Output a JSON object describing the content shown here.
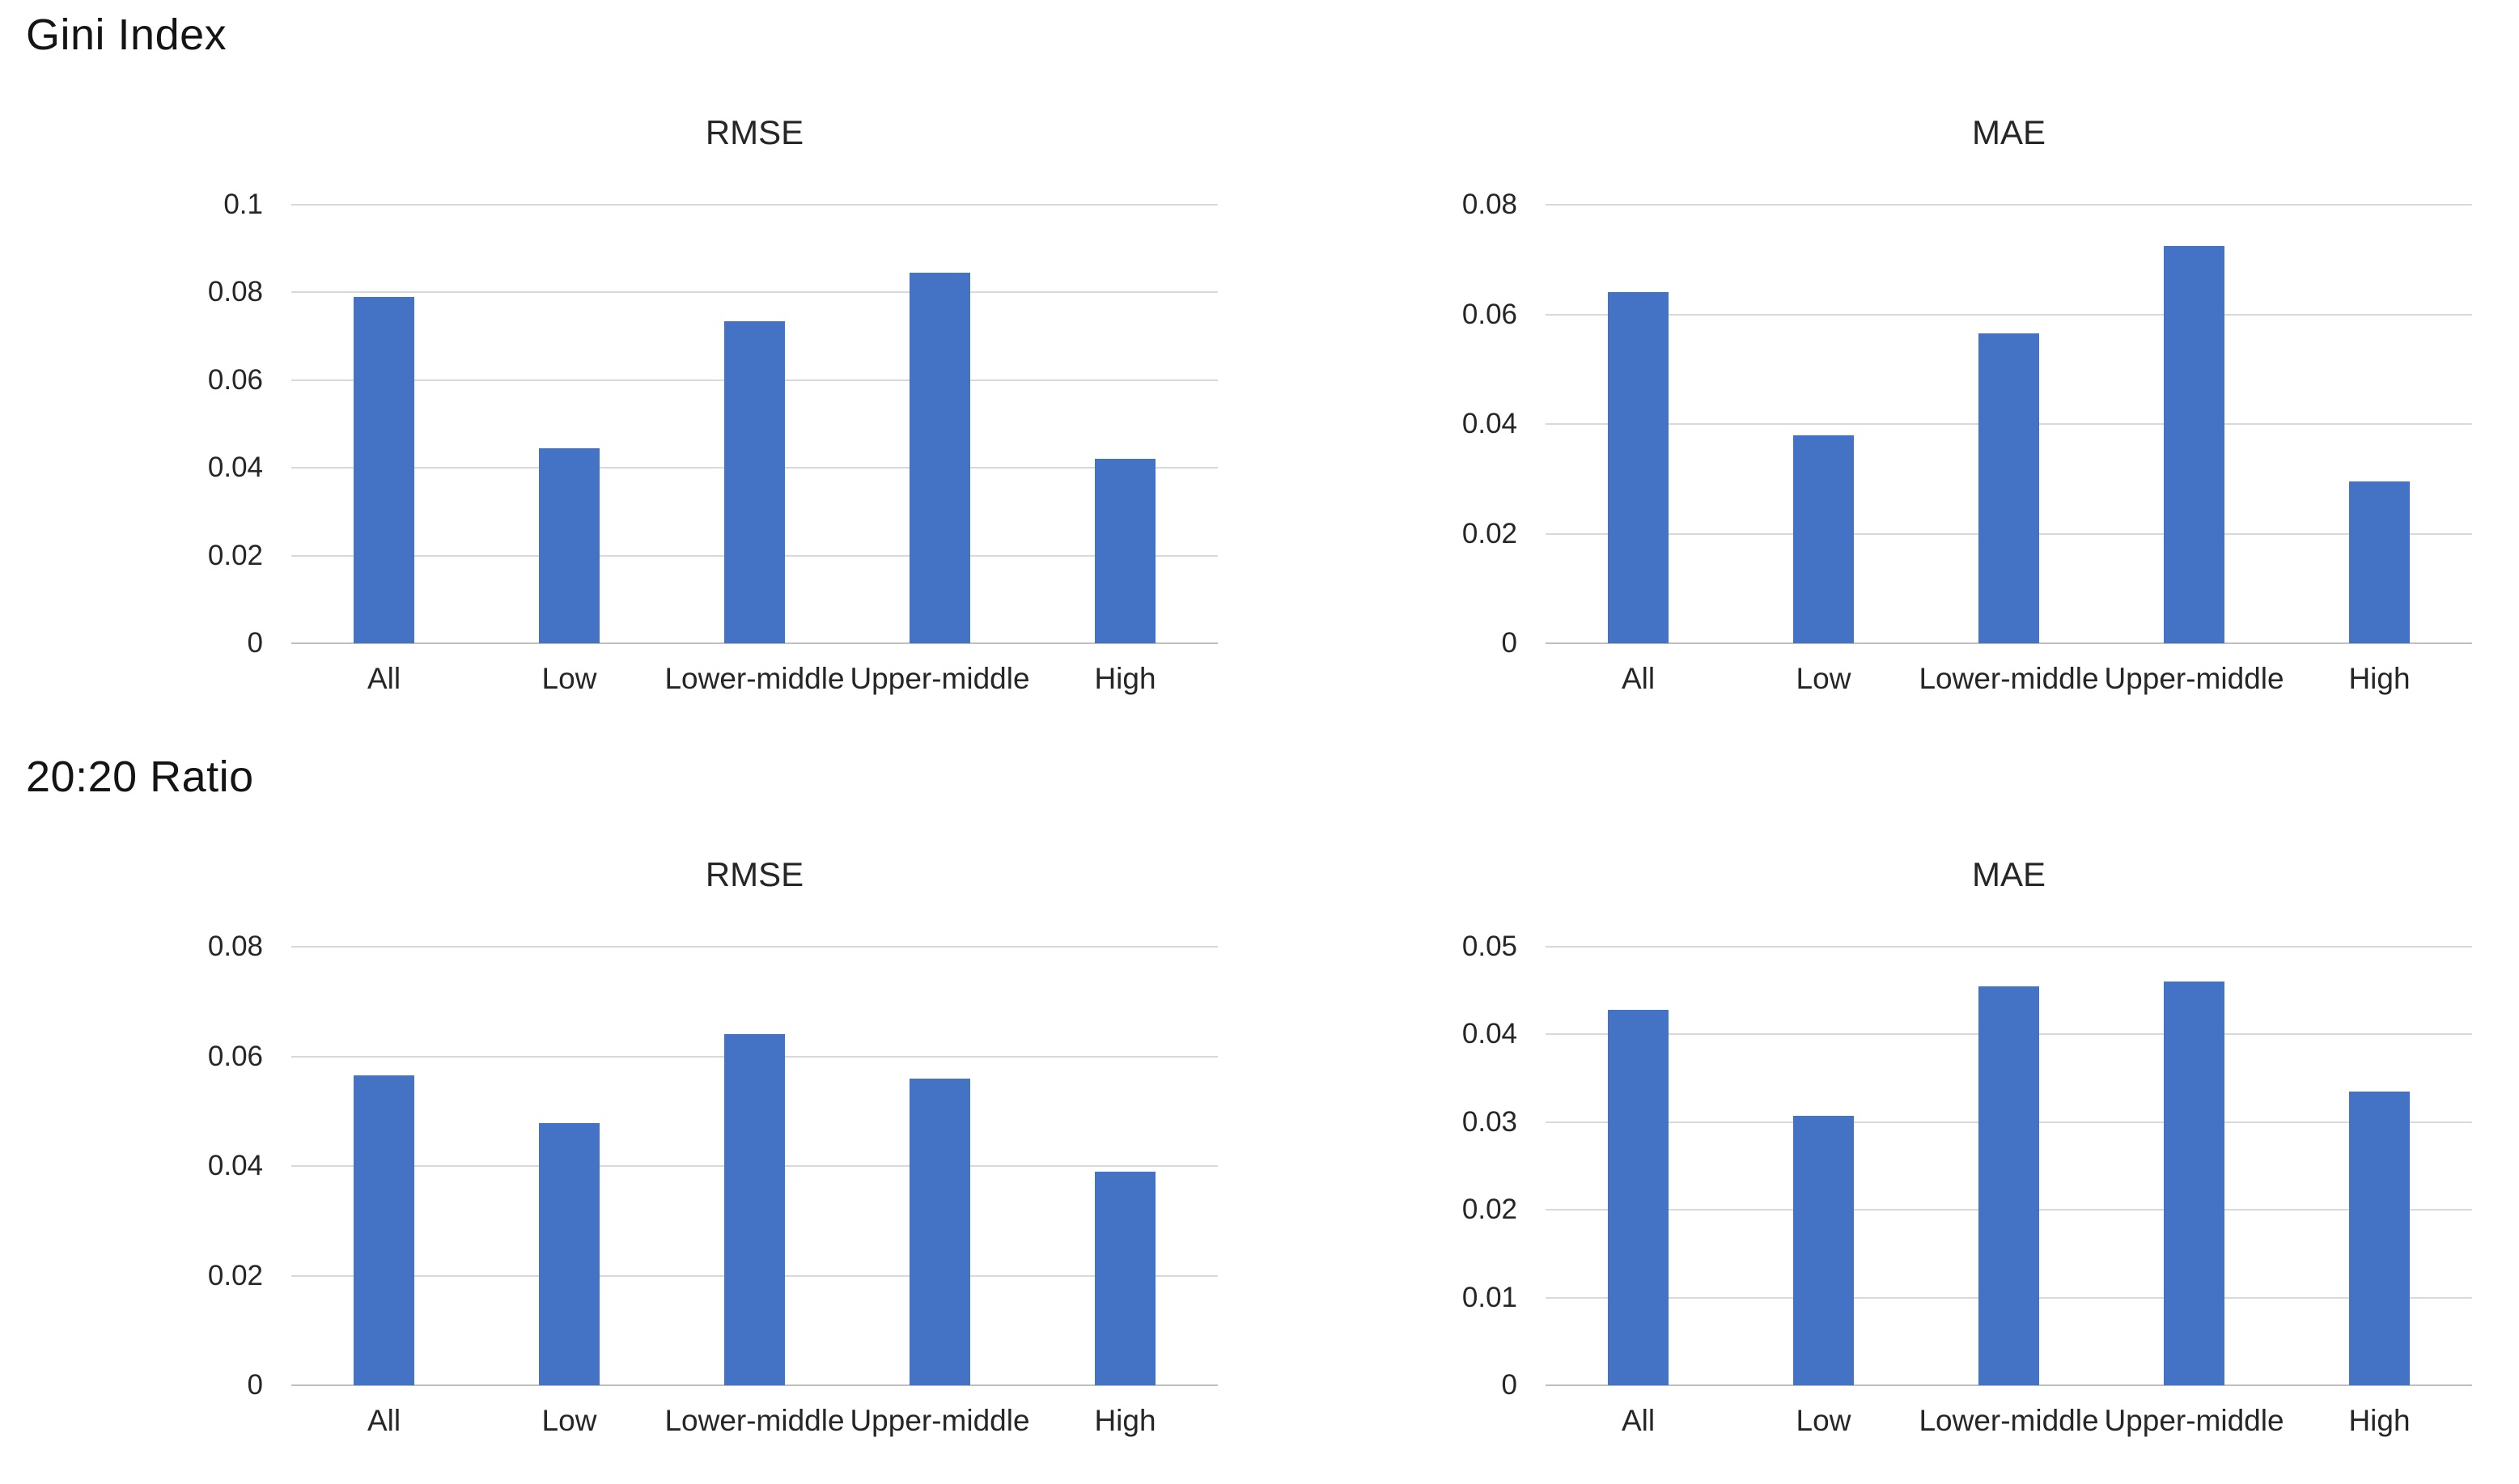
{
  "styles": {
    "bar_color": "#4472C4",
    "gridline_color": "#d9d9d9",
    "baseline_color": "#bfbfbf",
    "text_color": "#262626",
    "background_color": "#ffffff"
  },
  "sections": [
    {
      "label": "Gini Index"
    },
    {
      "label": "20:20 Ratio"
    }
  ],
  "chart_data": [
    {
      "type": "bar",
      "section": "Gini Index",
      "title": "RMSE",
      "categories": [
        "All",
        "Low",
        "Lower-middle",
        "Upper-middle",
        "High"
      ],
      "values": [
        0.079,
        0.0445,
        0.0735,
        0.0845,
        0.042
      ],
      "xlabel": "",
      "ylabel": "",
      "ylim": [
        0,
        0.1
      ],
      "yticks": [
        0,
        0.02,
        0.04,
        0.06,
        0.08,
        0.1
      ],
      "grid": true,
      "legend": false
    },
    {
      "type": "bar",
      "section": "Gini Index",
      "title": "MAE",
      "categories": [
        "All",
        "Low",
        "Lower-middle",
        "Upper-middle",
        "High"
      ],
      "values": [
        0.064,
        0.038,
        0.0565,
        0.0725,
        0.0295
      ],
      "xlabel": "",
      "ylabel": "",
      "ylim": [
        0,
        0.08
      ],
      "yticks": [
        0,
        0.02,
        0.04,
        0.06,
        0.08
      ],
      "grid": true,
      "legend": false
    },
    {
      "type": "bar",
      "section": "20:20 Ratio",
      "title": "RMSE",
      "categories": [
        "All",
        "Low",
        "Lower-middle",
        "Upper-middle",
        "High"
      ],
      "values": [
        0.0565,
        0.0478,
        0.064,
        0.056,
        0.039
      ],
      "xlabel": "",
      "ylabel": "",
      "ylim": [
        0,
        0.08
      ],
      "yticks": [
        0,
        0.02,
        0.04,
        0.06,
        0.08
      ],
      "grid": true,
      "legend": false
    },
    {
      "type": "bar",
      "section": "20:20 Ratio",
      "title": "MAE",
      "categories": [
        "All",
        "Low",
        "Lower-middle",
        "Upper-middle",
        "High"
      ],
      "values": [
        0.0428,
        0.0307,
        0.0455,
        0.046,
        0.0335
      ],
      "xlabel": "",
      "ylabel": "",
      "ylim": [
        0,
        0.05
      ],
      "yticks": [
        0,
        0.01,
        0.02,
        0.03,
        0.04,
        0.05
      ],
      "grid": true,
      "legend": false
    }
  ]
}
